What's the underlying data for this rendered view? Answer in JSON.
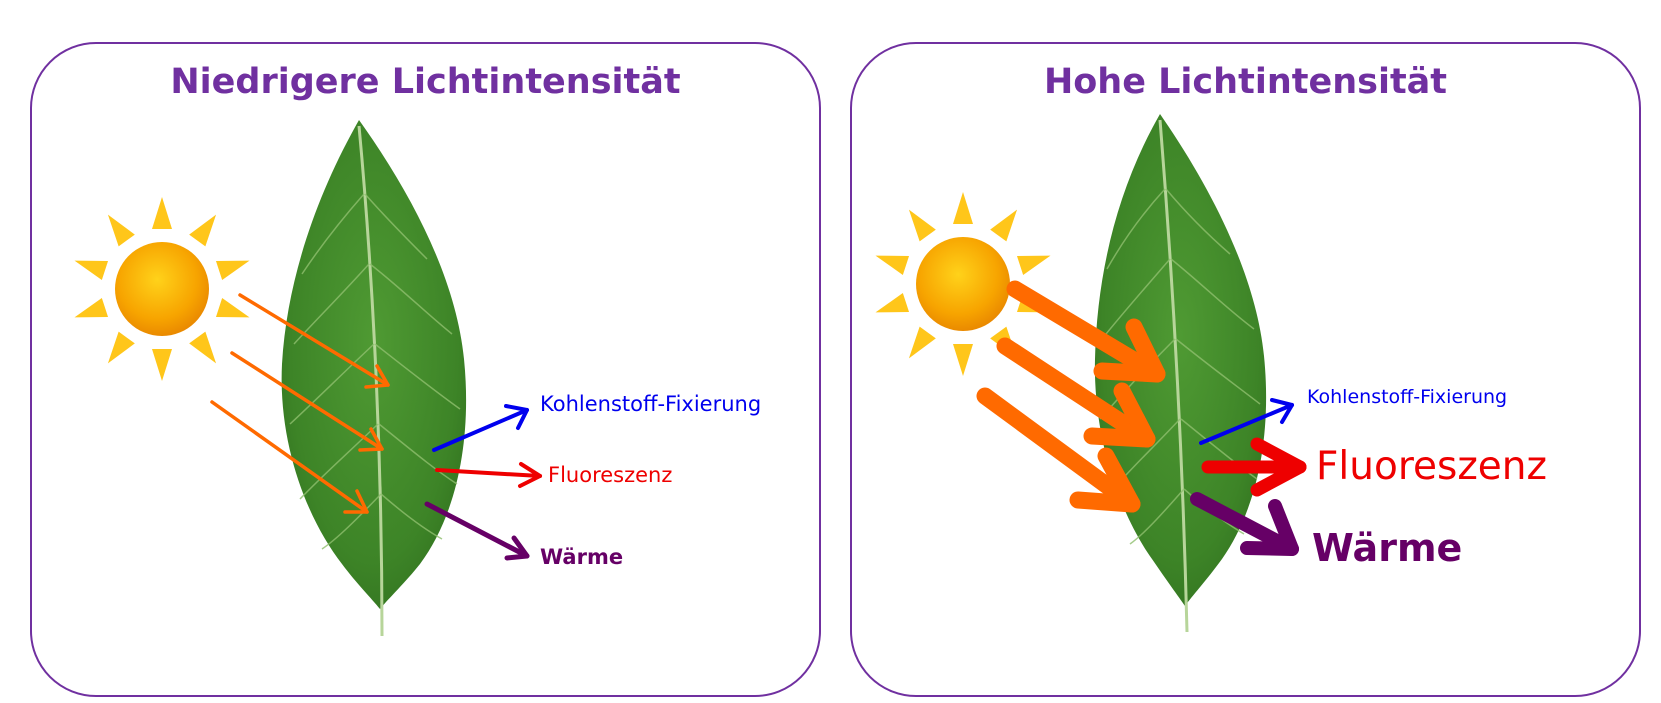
{
  "header": {
    "text": ""
  },
  "panels": [
    {
      "title": "Niedrigere Lichtintensität",
      "labels": {
        "carbon": "Kohlenstoff-Fixierung",
        "fluorescence": "Fluoreszenz",
        "heat": "Wärme"
      }
    },
    {
      "title": "Hohe Lichtintensität",
      "labels": {
        "carbon": "Kohlenstoff-Fixierung",
        "fluorescence": "Fluoreszenz",
        "heat": "Wärme"
      }
    }
  ],
  "colors": {
    "frame": "#7030a0",
    "title": "#7030a0",
    "incoming_light": "#ff6a00",
    "carbon_fixation": "#0000ee",
    "fluorescence": "#ee0000",
    "heat": "#660066",
    "leaf": "#3f8a2a",
    "sun": "#f7a400"
  },
  "icons": [
    "sun-icon",
    "leaf-icon",
    "arrow-icon"
  ]
}
